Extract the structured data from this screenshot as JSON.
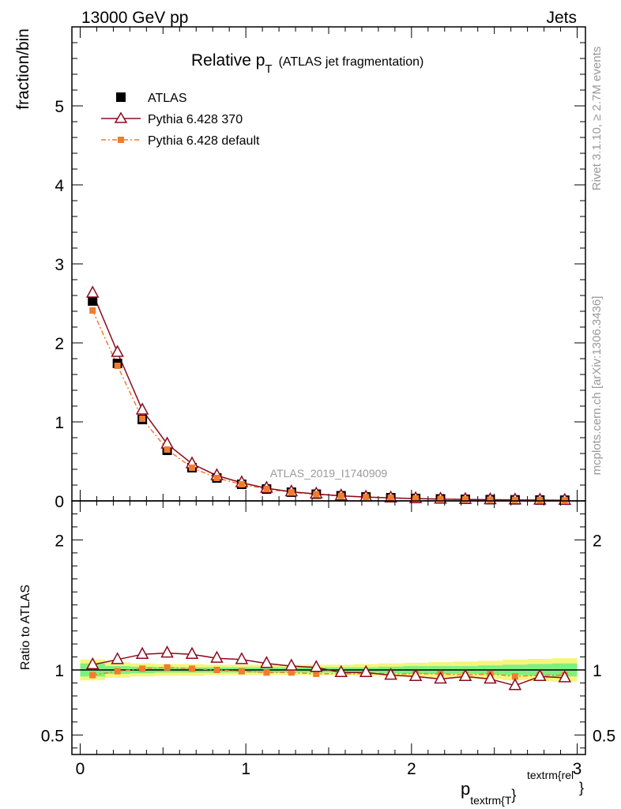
{
  "header": {
    "left": "13000 GeV pp",
    "right": "Jets"
  },
  "side_text": {
    "rivet": "Rivet 3.1.10, ≥ 2.7M events",
    "mcplots": "mcplots.cern.ch [arXiv:1306.3436]"
  },
  "watermark": "ATLAS_2019_I1740909",
  "colors": {
    "atlas": "#000000",
    "pythia370": "#8b0a1e",
    "pythia_default": "#f07d2d",
    "band_inner": "#7ef07e",
    "band_outer": "#f5f57d"
  },
  "chart_data": [
    {
      "type": "line",
      "panel": "main",
      "title_main": "Relative p",
      "title_sub": "T",
      "title_extra": "(ATLAS jet fragmentation)",
      "ylabel": "fraction/bin",
      "xlim": [
        -0.05,
        3.05
      ],
      "ylim": [
        0,
        6.0
      ],
      "yticks": [
        "0",
        "1",
        "2",
        "3",
        "4",
        "5"
      ],
      "x": [
        0.075,
        0.225,
        0.375,
        0.525,
        0.675,
        0.825,
        0.975,
        1.125,
        1.275,
        1.425,
        1.575,
        1.725,
        1.875,
        2.025,
        2.175,
        2.325,
        2.475,
        2.625,
        2.775,
        2.925
      ],
      "series": [
        {
          "name": "ATLAS",
          "style": "square",
          "values": [
            2.53,
            1.74,
            1.03,
            0.64,
            0.42,
            0.29,
            0.21,
            0.15,
            0.11,
            0.085,
            0.065,
            0.05,
            0.04,
            0.031,
            0.025,
            0.02,
            0.016,
            0.013,
            0.011,
            0.009
          ]
        },
        {
          "name": "Pythia 6.428 370",
          "style": "triangle",
          "values": [
            2.63,
            1.88,
            1.15,
            0.72,
            0.47,
            0.32,
            0.23,
            0.16,
            0.115,
            0.088,
            0.064,
            0.049,
            0.038,
            0.029,
            0.023,
            0.019,
            0.015,
            0.012,
            0.01,
            0.008
          ]
        },
        {
          "name": "Pythia 6.428 default",
          "style": "dashdot",
          "values": [
            2.41,
            1.71,
            1.04,
            0.65,
            0.42,
            0.29,
            0.21,
            0.15,
            0.108,
            0.083,
            0.063,
            0.048,
            0.039,
            0.03,
            0.024,
            0.019,
            0.015,
            0.012,
            0.01,
            0.0085
          ]
        }
      ]
    },
    {
      "type": "line",
      "panel": "ratio",
      "ylabel": "Ratio to ATLAS",
      "xlabel_main": "p",
      "xlabel_sub": "textrm{T",
      "xlabel_brace": "}",
      "xlabel_sup": "textrm{rel",
      "xlabel_end": "}",
      "xlim": [
        -0.05,
        3.05
      ],
      "ylim": [
        0.35,
        2.3
      ],
      "yticks": [
        "0.5",
        "1",
        "2"
      ],
      "xticks": [
        "0",
        "1",
        "2",
        "3"
      ],
      "x": [
        0.075,
        0.225,
        0.375,
        0.525,
        0.675,
        0.825,
        0.975,
        1.125,
        1.275,
        1.425,
        1.575,
        1.725,
        1.875,
        2.025,
        2.175,
        2.325,
        2.475,
        2.625,
        2.775,
        2.925
      ],
      "band_inner": [
        0.05,
        0.03,
        0.025,
        0.02,
        0.02,
        0.02,
        0.02,
        0.02,
        0.02,
        0.02,
        0.02,
        0.02,
        0.025,
        0.03,
        0.03,
        0.03,
        0.035,
        0.04,
        0.045,
        0.05
      ],
      "band_outer": [
        0.08,
        0.06,
        0.05,
        0.045,
        0.045,
        0.04,
        0.04,
        0.04,
        0.04,
        0.04,
        0.04,
        0.045,
        0.05,
        0.055,
        0.06,
        0.065,
        0.07,
        0.08,
        0.085,
        0.09
      ],
      "series": [
        {
          "name": "Pythia 6.428 370",
          "style": "triangle",
          "values": [
            1.04,
            1.08,
            1.12,
            1.13,
            1.12,
            1.09,
            1.08,
            1.05,
            1.03,
            1.02,
            0.98,
            0.98,
            0.96,
            0.95,
            0.93,
            0.95,
            0.93,
            0.88,
            0.95,
            0.94
          ]
        },
        {
          "name": "Pythia 6.428 default",
          "style": "dashdot",
          "values": [
            0.96,
            0.99,
            1.01,
            1.02,
            1.01,
            1.0,
            0.99,
            0.98,
            0.98,
            0.97,
            0.97,
            0.97,
            0.97,
            0.97,
            0.97,
            0.96,
            0.97,
            0.95,
            0.96,
            0.96
          ]
        }
      ]
    }
  ]
}
